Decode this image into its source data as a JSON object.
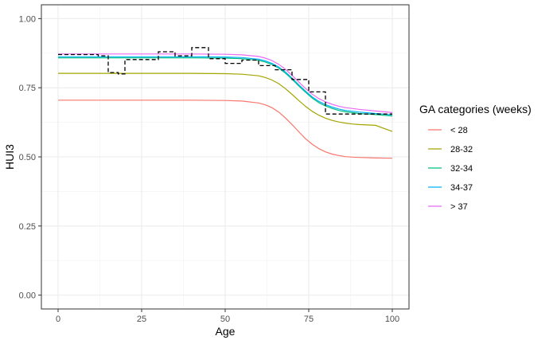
{
  "chart_data": {
    "type": "line",
    "title": "",
    "xlabel": "Age",
    "ylabel": "HUI3",
    "xlim": [
      -5,
      105
    ],
    "ylim": [
      -0.05,
      1.05
    ],
    "x_ticks": [
      0,
      25,
      50,
      75,
      100
    ],
    "x_tick_labels": [
      "0",
      "25",
      "50",
      "75",
      "100"
    ],
    "y_ticks": [
      0,
      0.25,
      0.5,
      0.75,
      1.0
    ],
    "y_tick_labels": [
      "0.00",
      "0.25",
      "0.50",
      "0.75",
      "1.00"
    ],
    "grid": true,
    "legend": {
      "title": "GA categories (weeks)",
      "position": "right"
    },
    "series": [
      {
        "name": "< 28",
        "color": "#F8766D",
        "style": "solid",
        "x": [
          0,
          10,
          20,
          30,
          40,
          50,
          55,
          60,
          62,
          64,
          66,
          68,
          70,
          72,
          74,
          76,
          78,
          80,
          82,
          84,
          86,
          88,
          90,
          95,
          100
        ],
        "y": [
          0.705,
          0.705,
          0.705,
          0.705,
          0.705,
          0.704,
          0.702,
          0.695,
          0.688,
          0.678,
          0.662,
          0.641,
          0.617,
          0.591,
          0.566,
          0.546,
          0.53,
          0.518,
          0.51,
          0.505,
          0.501,
          0.499,
          0.498,
          0.496,
          0.495
        ]
      },
      {
        "name": "28-32",
        "color": "#A3A500",
        "style": "solid",
        "x": [
          0,
          10,
          20,
          30,
          40,
          50,
          55,
          60,
          62,
          64,
          66,
          68,
          70,
          72,
          74,
          76,
          78,
          80,
          82,
          84,
          86,
          88,
          90,
          95,
          100
        ],
        "y": [
          0.802,
          0.802,
          0.802,
          0.802,
          0.802,
          0.801,
          0.799,
          0.793,
          0.787,
          0.778,
          0.765,
          0.747,
          0.726,
          0.704,
          0.683,
          0.665,
          0.651,
          0.64,
          0.632,
          0.626,
          0.622,
          0.619,
          0.617,
          0.614,
          0.592
        ]
      },
      {
        "name": "32-34",
        "color": "#00BF7D",
        "style": "solid",
        "x": [
          0,
          10,
          20,
          30,
          40,
          50,
          55,
          60,
          62,
          64,
          66,
          68,
          70,
          72,
          74,
          76,
          78,
          80,
          82,
          84,
          86,
          88,
          90,
          95,
          100
        ],
        "y": [
          0.858,
          0.858,
          0.858,
          0.858,
          0.858,
          0.857,
          0.855,
          0.849,
          0.843,
          0.834,
          0.821,
          0.803,
          0.781,
          0.757,
          0.734,
          0.713,
          0.696,
          0.684,
          0.675,
          0.668,
          0.663,
          0.66,
          0.657,
          0.653,
          0.648
        ]
      },
      {
        "name": "34-37",
        "color": "#00B0F6",
        "style": "solid",
        "x": [
          0,
          10,
          20,
          30,
          40,
          50,
          55,
          60,
          62,
          64,
          66,
          68,
          70,
          72,
          74,
          76,
          78,
          80,
          82,
          84,
          86,
          88,
          90,
          95,
          100
        ],
        "y": [
          0.862,
          0.862,
          0.862,
          0.862,
          0.862,
          0.861,
          0.859,
          0.853,
          0.847,
          0.838,
          0.825,
          0.807,
          0.785,
          0.761,
          0.738,
          0.717,
          0.701,
          0.689,
          0.68,
          0.673,
          0.668,
          0.665,
          0.662,
          0.657,
          0.652
        ]
      },
      {
        "name": "> 37",
        "color": "#E76BF3",
        "style": "solid",
        "x": [
          0,
          10,
          20,
          30,
          40,
          50,
          55,
          60,
          62,
          64,
          66,
          68,
          70,
          72,
          74,
          76,
          78,
          80,
          82,
          84,
          86,
          88,
          90,
          95,
          100
        ],
        "y": [
          0.872,
          0.872,
          0.872,
          0.872,
          0.872,
          0.871,
          0.869,
          0.863,
          0.857,
          0.848,
          0.835,
          0.817,
          0.795,
          0.771,
          0.748,
          0.727,
          0.711,
          0.699,
          0.69,
          0.683,
          0.678,
          0.675,
          0.672,
          0.666,
          0.66
        ]
      },
      {
        "name": "",
        "color": "#000000",
        "style": "dashed",
        "step": true,
        "x": [
          0,
          5,
          10,
          12,
          15,
          18,
          20,
          25,
          30,
          32,
          35,
          37,
          40,
          45,
          47,
          50,
          55,
          60,
          65,
          67,
          70,
          75,
          77,
          80,
          85,
          90,
          95,
          100
        ],
        "y": [
          0.87,
          0.87,
          0.87,
          0.865,
          0.805,
          0.8,
          0.852,
          0.852,
          0.88,
          0.88,
          0.865,
          0.865,
          0.895,
          0.855,
          0.855,
          0.838,
          0.85,
          0.83,
          0.815,
          0.815,
          0.78,
          0.735,
          0.735,
          0.655,
          0.655,
          0.655,
          0.655,
          0.655
        ]
      }
    ]
  }
}
